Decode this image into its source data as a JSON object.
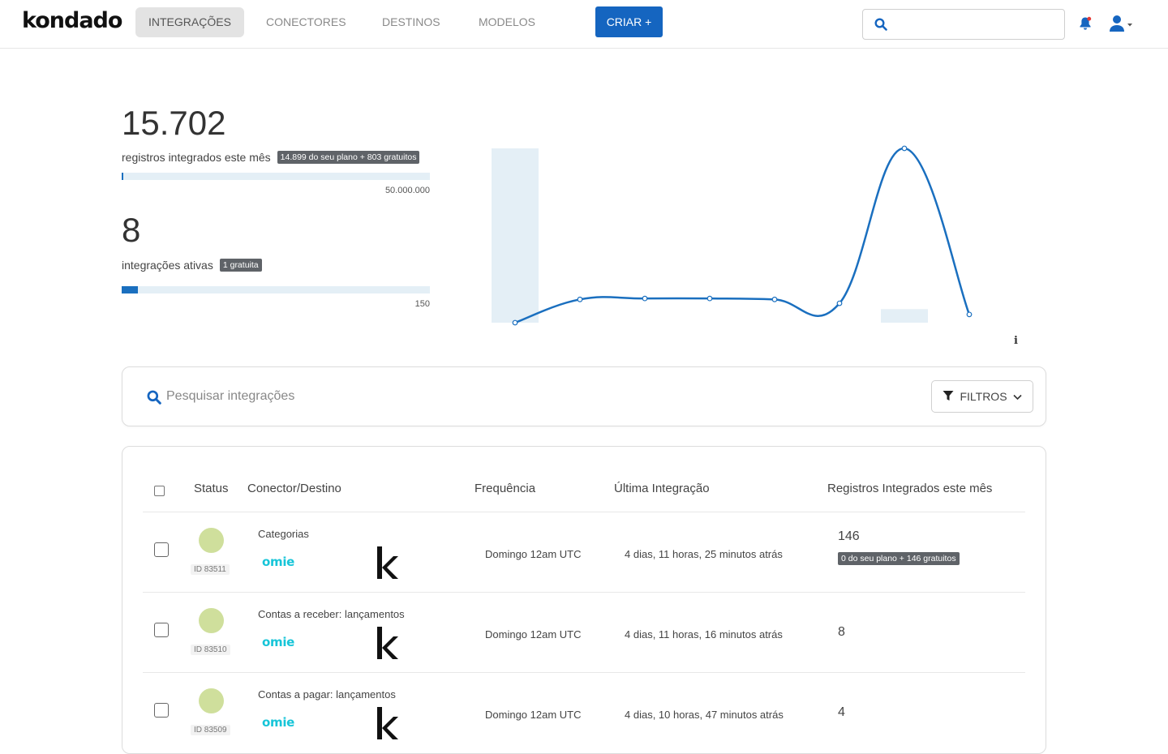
{
  "nav": {
    "logo": "kondado",
    "items": [
      {
        "label": "INTEGRAÇÕES",
        "active": true
      },
      {
        "label": "CONECTORES",
        "active": false
      },
      {
        "label": "DESTINOS",
        "active": false
      },
      {
        "label": "MODELOS",
        "active": false
      }
    ],
    "create_label": "CRIAR +",
    "search_placeholder": "",
    "accent": "#1565c0"
  },
  "stats": {
    "records": {
      "value": "15.702",
      "label": "registros integrados este mês",
      "badge": "14.899 do seu plano + 803 gratuitos",
      "max": "50.000.000",
      "fraction": 0.0003
    },
    "integrations": {
      "value": "8",
      "label": "integrações ativas",
      "badge": "1 gratuita",
      "max": "150",
      "fraction": 0.053
    }
  },
  "chart_data": {
    "type": "line",
    "title": "",
    "xlabel": "",
    "ylabel": "",
    "line_values": [
      0,
      48,
      50,
      50,
      48,
      40,
      360,
      17
    ],
    "bar_values": [
      360,
      0,
      0,
      0,
      0,
      0,
      28,
      0
    ],
    "line_color": "#1a6fbf",
    "bar_color": "#e4eff6",
    "grid": false
  },
  "search": {
    "placeholder": "Pesquisar integrações",
    "filter_label": "FILTROS"
  },
  "table": {
    "headers": {
      "status": "Status",
      "connector": "Conector/Destino",
      "frequency": "Frequência",
      "last": "Última Integração",
      "records": "Registros Integrados este mês"
    },
    "rows": [
      {
        "id": "ID 83511",
        "name": "Categorias",
        "source": "omie",
        "frequency": "Domingo 12am UTC",
        "last": "4 dias, 11 horas, 25 minutos atrás",
        "records": "146",
        "records_badge": "0 do seu plano + 146 gratuitos"
      },
      {
        "id": "ID 83510",
        "name": "Contas a receber: lançamentos",
        "source": "omie",
        "frequency": "Domingo 12am UTC",
        "last": "4 dias, 11 horas, 16 minutos atrás",
        "records": "8",
        "records_badge": ""
      },
      {
        "id": "ID 83509",
        "name": "Contas a pagar: lançamentos",
        "source": "omie",
        "frequency": "Domingo 12am UTC",
        "last": "4 dias, 10 horas, 47 minutos atrás",
        "records": "4",
        "records_badge": ""
      }
    ]
  }
}
